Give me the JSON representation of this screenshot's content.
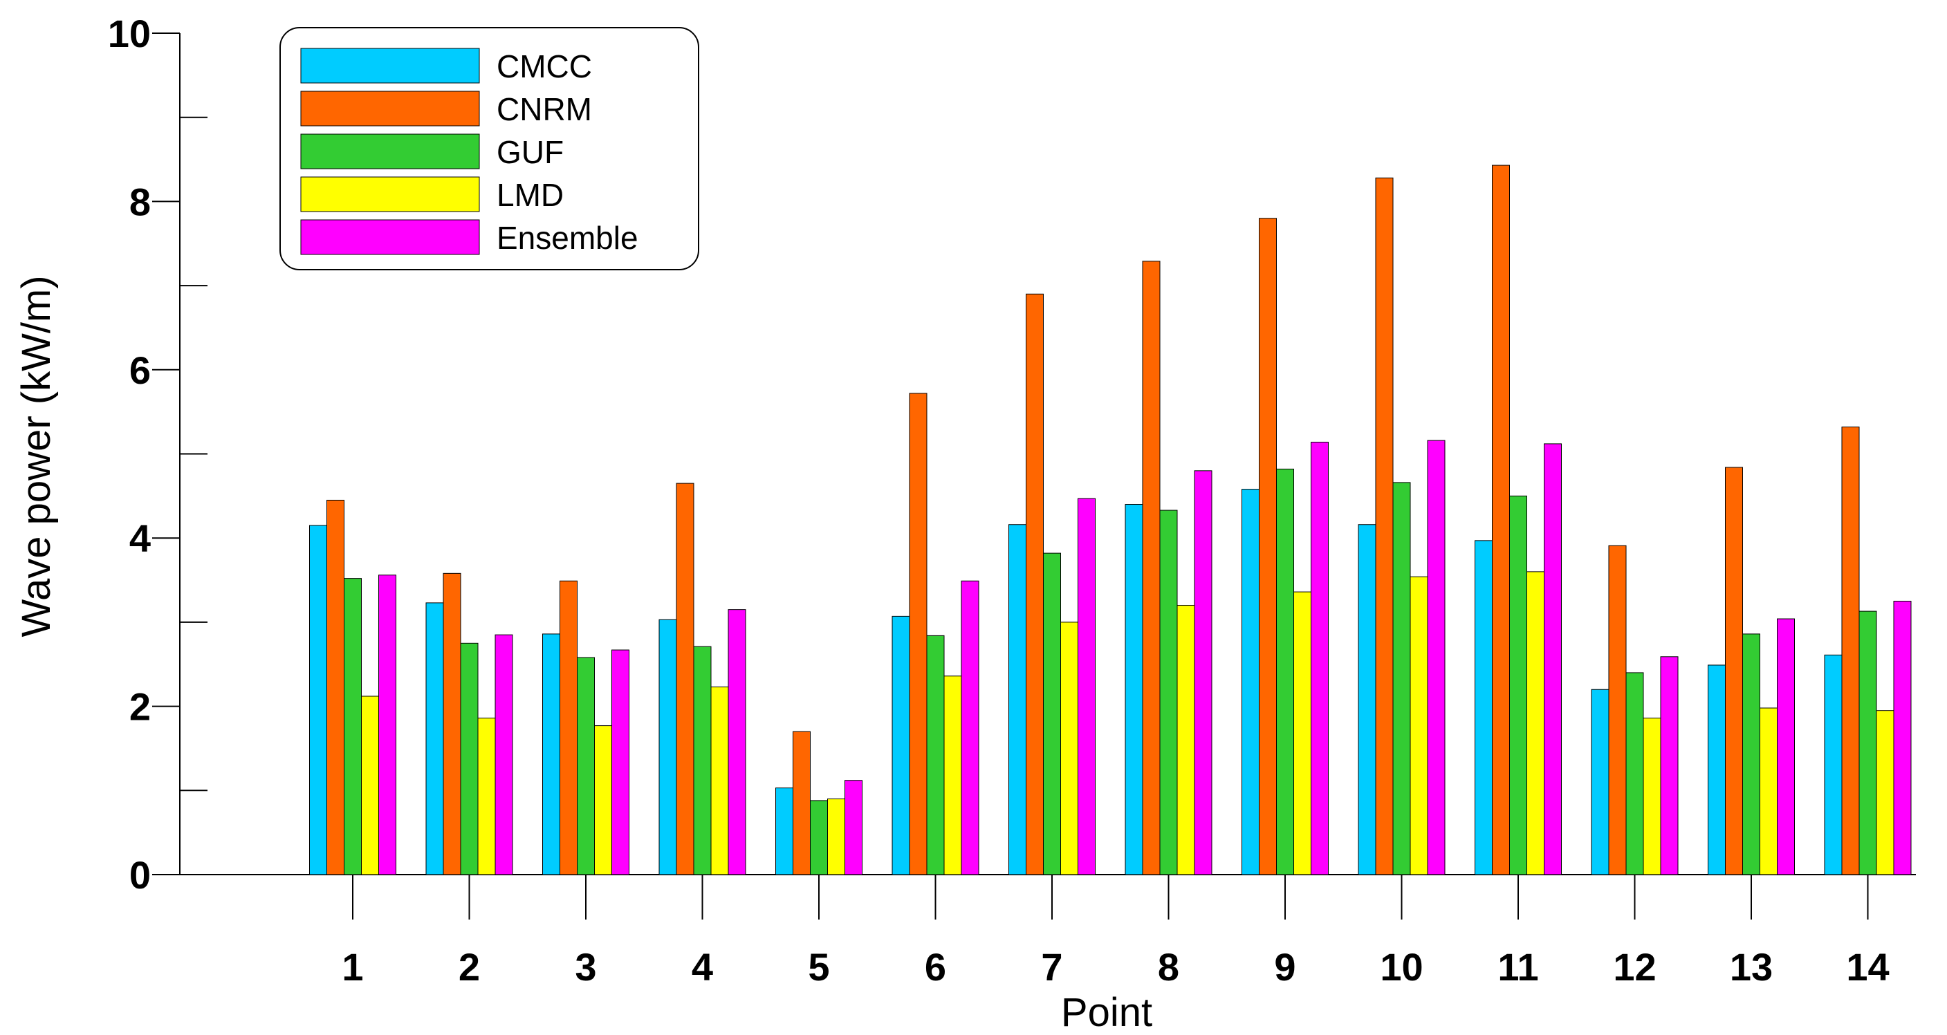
{
  "chart_data": {
    "type": "bar",
    "xlabel": "Point",
    "ylabel": "Wave power (kW/m)",
    "ylim": [
      0,
      10
    ],
    "y_major_ticks": [
      0,
      2,
      4,
      6,
      8,
      10
    ],
    "y_minor_ticks": [
      1,
      3,
      5,
      7,
      9
    ],
    "categories": [
      "1",
      "2",
      "3",
      "4",
      "5",
      "6",
      "7",
      "8",
      "9",
      "10",
      "11",
      "12",
      "13",
      "14"
    ],
    "series": [
      {
        "name": "CMCC",
        "color": "#00CCFF",
        "values": [
          4.15,
          3.23,
          2.86,
          3.03,
          1.03,
          3.07,
          4.16,
          4.4,
          4.58,
          4.16,
          3.97,
          2.2,
          2.49,
          2.61
        ]
      },
      {
        "name": "CNRM",
        "color": "#FF6600",
        "values": [
          4.45,
          3.58,
          3.49,
          4.65,
          1.7,
          5.72,
          6.9,
          7.29,
          7.8,
          8.28,
          8.43,
          3.91,
          4.84,
          5.32
        ]
      },
      {
        "name": "GUF",
        "color": "#33CC33",
        "values": [
          3.52,
          2.75,
          2.58,
          2.71,
          0.88,
          2.84,
          3.82,
          4.33,
          4.82,
          4.66,
          4.5,
          2.4,
          2.86,
          3.13
        ]
      },
      {
        "name": "LMD",
        "color": "#FFFF00",
        "values": [
          2.12,
          1.86,
          1.77,
          2.23,
          0.9,
          2.36,
          3.0,
          3.2,
          3.36,
          3.54,
          3.6,
          1.86,
          1.98,
          1.95
        ]
      },
      {
        "name": "Ensemble",
        "color": "#FF00FF",
        "values": [
          3.56,
          2.85,
          2.67,
          3.15,
          1.12,
          3.49,
          4.47,
          4.8,
          5.14,
          5.16,
          5.12,
          2.59,
          3.04,
          3.25
        ]
      }
    ],
    "legend_position": "top-left",
    "grid": false
  }
}
